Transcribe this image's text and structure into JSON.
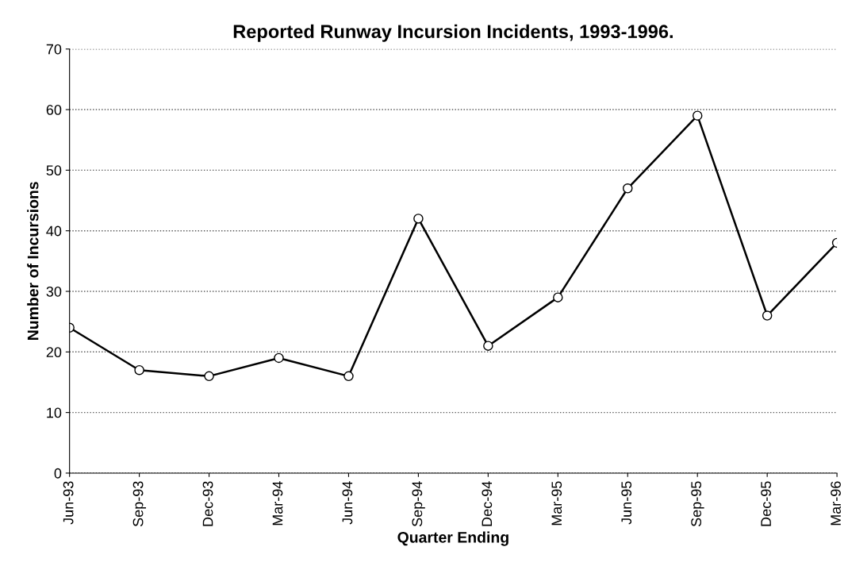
{
  "chart_data": {
    "type": "line",
    "title": "Reported Runway Incursion Incidents, 1993-1996.",
    "xlabel": "Quarter Ending",
    "ylabel": "Number of Incursions",
    "categories": [
      "Jun-93",
      "Sep-93",
      "Dec-93",
      "Mar-94",
      "Jun-94",
      "Sep-94",
      "Dec-94",
      "Mar-95",
      "Jun-95",
      "Sep-95",
      "Dec-95",
      "Mar-96"
    ],
    "series": [
      {
        "color": "#000000",
        "values": [
          24,
          17,
          16,
          19,
          16,
          42,
          21,
          29,
          47,
          59,
          26,
          38
        ]
      }
    ],
    "ylim": [
      0,
      70
    ],
    "yticks": [
      0,
      10,
      20,
      30,
      40,
      50,
      60,
      70
    ],
    "grid": "y",
    "legend": false,
    "marker": "circle",
    "line_style": "solid"
  }
}
